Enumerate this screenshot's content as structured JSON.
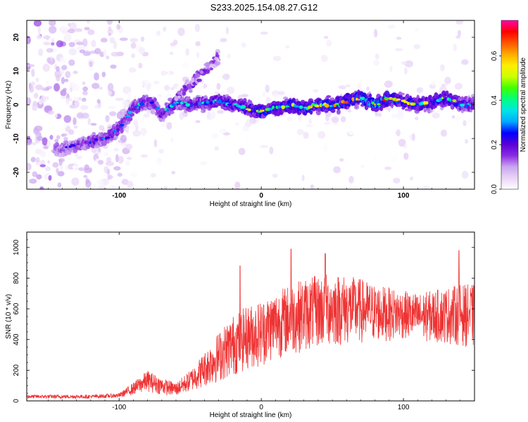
{
  "title": "S233.2025.154.08.27.G12",
  "chart_data": [
    {
      "type": "heatmap",
      "xlabel": "Height of straight line (km)",
      "ylabel": "Frequency (Hz)",
      "xlim": [
        -165,
        150
      ],
      "ylim": [
        -25,
        25
      ],
      "xticks": [
        -100,
        0,
        100
      ],
      "yticks": [
        -20,
        -10,
        0,
        10,
        20
      ],
      "colorbar": {
        "label": "Normalized spectral amplitude",
        "range": [
          0.0,
          0.76
        ],
        "ticks": [
          0.0,
          0.2,
          0.4,
          0.6
        ],
        "colors": [
          "#ffffff",
          "#e8d4f7",
          "#c9a5f0",
          "#8a2be2",
          "#5a00d8",
          "#0000ff",
          "#00aaff",
          "#00e5e5",
          "#00ff80",
          "#40ff00",
          "#ccff00",
          "#ffee00",
          "#ffaa00",
          "#ff5500",
          "#ff0000",
          "#ff00aa"
        ]
      },
      "ridge": {
        "x": [
          -140,
          -130,
          -120,
          -110,
          -100,
          -95,
          -90,
          -85,
          -80,
          -75,
          -70,
          -60,
          -50,
          -40,
          -30,
          -20,
          -10,
          0,
          10,
          20,
          30,
          40,
          50,
          60,
          70,
          80,
          90,
          100,
          110,
          120,
          130,
          140,
          148
        ],
        "y": [
          -13,
          -12,
          -11,
          -10,
          -7,
          -4,
          -1,
          0,
          1,
          0,
          -3,
          1,
          0,
          0.5,
          1,
          0,
          -1,
          -2,
          -1,
          0,
          -1,
          0,
          0,
          1,
          2,
          0,
          2,
          1,
          0,
          1,
          2,
          0,
          0
        ],
        "amplitude": [
          0.2,
          0.22,
          0.25,
          0.28,
          0.3,
          0.3,
          0.32,
          0.33,
          0.3,
          0.28,
          0.3,
          0.35,
          0.33,
          0.35,
          0.38,
          0.4,
          0.45,
          0.5,
          0.45,
          0.48,
          0.5,
          0.52,
          0.55,
          0.6,
          0.5,
          0.7,
          0.55,
          0.5,
          0.48,
          0.45,
          0.5,
          0.4,
          0.35
        ]
      }
    },
    {
      "type": "line",
      "xlabel": "Height of straight line (km)",
      "ylabel": "SNR (10 * v/v)",
      "xlim": [
        -165,
        150
      ],
      "ylim": [
        0,
        1100
      ],
      "xticks": [
        -100,
        0,
        100
      ],
      "yticks": [
        0,
        200,
        400,
        600,
        800,
        1000
      ],
      "line_color": "#ee3333",
      "envelope": {
        "x": [
          -165,
          -120,
          -100,
          -90,
          -80,
          -70,
          -60,
          -50,
          -40,
          -30,
          -20,
          -10,
          0,
          10,
          20,
          30,
          40,
          50,
          60,
          70,
          80,
          90,
          100,
          110,
          120,
          130,
          140,
          150
        ],
        "low": [
          15,
          15,
          20,
          40,
          60,
          40,
          30,
          60,
          90,
          120,
          160,
          200,
          220,
          270,
          300,
          320,
          340,
          350,
          360,
          370,
          380,
          390,
          400,
          390,
          380,
          370,
          360,
          340
        ],
        "high": [
          40,
          40,
          50,
          120,
          200,
          150,
          120,
          200,
          320,
          450,
          560,
          620,
          660,
          720,
          760,
          800,
          820,
          840,
          820,
          800,
          760,
          740,
          720,
          700,
          720,
          740,
          760,
          760
        ]
      },
      "spikes": [
        {
          "x": -15,
          "y": 880
        },
        {
          "x": 21,
          "y": 990
        },
        {
          "x": 45,
          "y": 960
        },
        {
          "x": 139,
          "y": 980
        }
      ]
    }
  ]
}
